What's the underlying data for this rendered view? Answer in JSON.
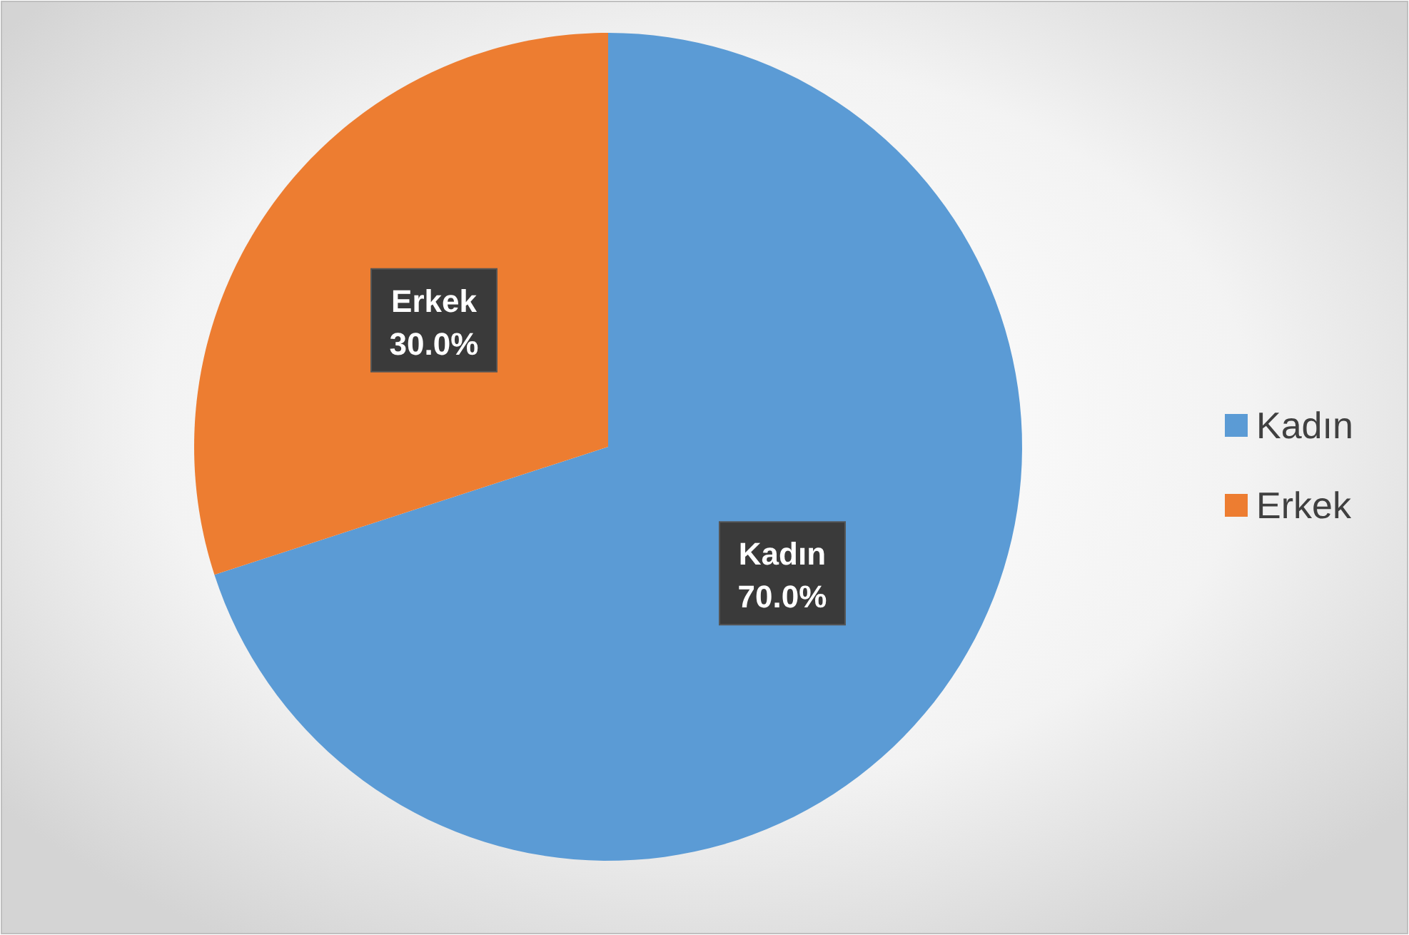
{
  "chart_data": {
    "type": "pie",
    "categories": [
      "Kadın",
      "Erkek"
    ],
    "values": [
      70,
      30
    ],
    "colors": [
      "#5b9bd5",
      "#ed7d31"
    ],
    "value_labels": [
      "70.0%",
      "30.0%"
    ],
    "legend": "right"
  }
}
